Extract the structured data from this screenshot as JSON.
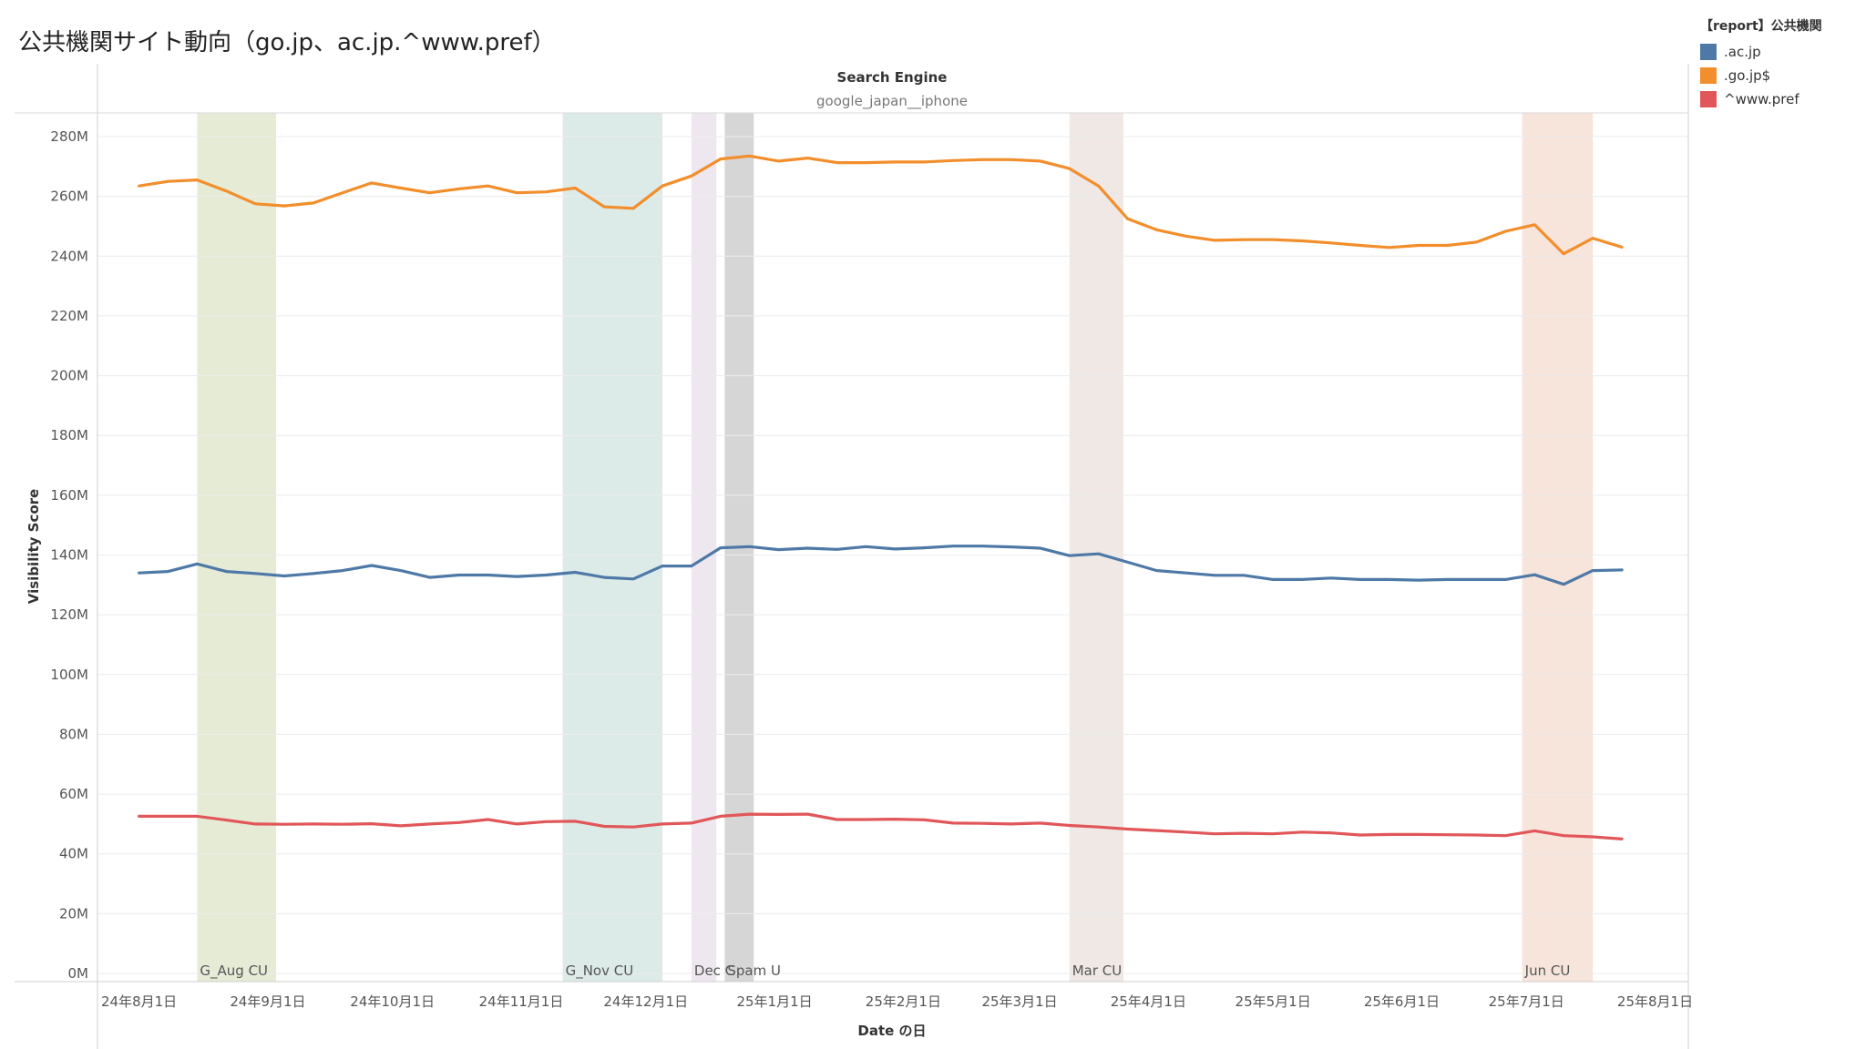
{
  "title": "公共機関サイト動向（go.jp、ac.jp.^www.pref）",
  "legend": {
    "title": "【report】公共機関",
    "items": [
      {
        "label": ".ac.jp",
        "color": "#4e79a7"
      },
      {
        "label": ".go.jp$",
        "color": "#f28e2b"
      },
      {
        "label": "^www.pref",
        "color": "#e15759"
      }
    ]
  },
  "chart_data": {
    "type": "line",
    "column_header": "Search Engine",
    "column_value": "google_japan__iphone",
    "xlabel": "Date の日",
    "ylabel": "Visibility Score",
    "ylim": [
      0,
      280
    ],
    "y_ticks": [
      "0M",
      "20M",
      "40M",
      "60M",
      "80M",
      "100M",
      "120M",
      "140M",
      "160M",
      "180M",
      "200M",
      "220M",
      "240M",
      "260M",
      "280M"
    ],
    "x_ticks": [
      "24年8月1日",
      "24年9月1日",
      "24年10月1日",
      "24年11月1日",
      "24年12月1日",
      "25年1月1日",
      "25年2月1日",
      "25年3月1日",
      "25年4月1日",
      "25年5月1日",
      "25年6月1日",
      "25年7月1日",
      "25年8月1日"
    ],
    "x_range": [
      "2024-07-22",
      "2025-08-09"
    ],
    "grid": true,
    "legend_position": "right",
    "bands": [
      {
        "label": "G_Aug CU",
        "start": "2024-08-15",
        "end": "2024-09-03",
        "color": "#e6ebd6"
      },
      {
        "label": "G_Nov CU",
        "start": "2024-11-11",
        "end": "2024-12-05",
        "color": "#dcebe8"
      },
      {
        "label": "Dec C",
        "start": "2024-12-12",
        "end": "2024-12-18",
        "color": "#efe7f0"
      },
      {
        "label": "Spam U",
        "start": "2024-12-20",
        "end": "2024-12-27",
        "color": "#d6d6d6"
      },
      {
        "label": "Mar CU",
        "start": "2025-03-13",
        "end": "2025-03-26",
        "color": "#efe8e5"
      },
      {
        "label": "Jun CU",
        "start": "2025-06-30",
        "end": "2025-07-17",
        "color": "#f7e4da"
      }
    ],
    "x": [
      "2024-08-01",
      "2024-08-08",
      "2024-08-15",
      "2024-08-22",
      "2024-08-29",
      "2024-09-05",
      "2024-09-12",
      "2024-09-19",
      "2024-09-26",
      "2024-10-03",
      "2024-10-10",
      "2024-10-17",
      "2024-10-24",
      "2024-10-31",
      "2024-11-07",
      "2024-11-14",
      "2024-11-21",
      "2024-11-28",
      "2024-12-05",
      "2024-12-12",
      "2024-12-19",
      "2024-12-26",
      "2025-01-02",
      "2025-01-09",
      "2025-01-16",
      "2025-01-23",
      "2025-01-30",
      "2025-02-06",
      "2025-02-13",
      "2025-02-20",
      "2025-02-27",
      "2025-03-06",
      "2025-03-13",
      "2025-03-20",
      "2025-03-27",
      "2025-04-03",
      "2025-04-10",
      "2025-04-17",
      "2025-04-24",
      "2025-05-01",
      "2025-05-08",
      "2025-05-15",
      "2025-05-22",
      "2025-05-29",
      "2025-06-05",
      "2025-06-12",
      "2025-06-19",
      "2025-06-26",
      "2025-07-03",
      "2025-07-10",
      "2025-07-17",
      "2025-07-24"
    ],
    "series": [
      {
        "name": ".ac.jp",
        "color": "#4e79a7",
        "values": [
          134,
          134.5,
          137,
          134.5,
          133.8,
          133,
          133.8,
          134.8,
          136.5,
          134.8,
          132.5,
          133.3,
          133.3,
          132.8,
          133.3,
          134.2,
          132.5,
          132,
          136.3,
          136.3,
          142.4,
          142.8,
          141.8,
          142.3,
          141.9,
          142.8,
          142,
          142.4,
          143,
          143,
          142.7,
          142.3,
          139.8,
          140.4,
          137.6,
          134.8,
          134,
          133.2,
          133.2,
          131.8,
          131.8,
          132.3,
          131.8,
          131.8,
          131.6,
          131.8,
          131.8,
          131.8,
          133.4,
          130.2,
          134.8,
          135
        ]
      },
      {
        "name": ".go.jp$",
        "color": "#f28e2b",
        "values": [
          263.5,
          265,
          265.5,
          261.8,
          257.5,
          256.8,
          257.8,
          261.2,
          264.5,
          262.8,
          261.2,
          262.5,
          263.5,
          261.2,
          261.5,
          262.8,
          256.5,
          256,
          263.5,
          266.8,
          272.5,
          273.5,
          271.8,
          272.8,
          271.3,
          271.3,
          271.5,
          271.5,
          272,
          272.3,
          272.3,
          271.8,
          269.3,
          263.5,
          252.5,
          248.8,
          246.7,
          245.3,
          245.5,
          245.5,
          245.1,
          244.4,
          243.6,
          242.9,
          243.6,
          243.6,
          244.7,
          248.3,
          250.5,
          240.8,
          246,
          243
        ]
      },
      {
        "name": "^www.pref",
        "color": "#e15759",
        "values": [
          52.6,
          52.6,
          52.6,
          51.3,
          50,
          49.9,
          50,
          49.9,
          50.1,
          49.4,
          50,
          50.5,
          51.5,
          50,
          50.8,
          50.9,
          49.2,
          49,
          50,
          50.3,
          52.6,
          53.3,
          53.2,
          53.3,
          51.5,
          51.5,
          51.6,
          51.4,
          50.3,
          50.2,
          50,
          50.3,
          49.5,
          49,
          48.3,
          47.8,
          47.3,
          46.7,
          46.9,
          46.7,
          47.3,
          47,
          46.3,
          46.5,
          46.5,
          46.4,
          46.3,
          46.1,
          47.7,
          46.1,
          45.7,
          45
        ]
      }
    ]
  }
}
